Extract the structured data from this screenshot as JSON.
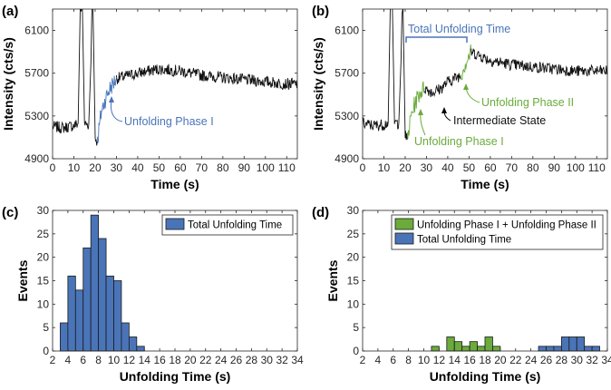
{
  "colors": {
    "blue": "#4a74b8",
    "green": "#6aab3c",
    "trace": "#111111",
    "axis": "#262626"
  },
  "chart_data": [
    {
      "panel": "(a)",
      "type": "line",
      "xlabel": "Time (s)",
      "ylabel": "Intensity (cts/s)",
      "xlim": [
        0,
        115
      ],
      "ylim": [
        4900,
        6300
      ],
      "xticks": [
        0,
        10,
        20,
        30,
        40,
        50,
        60,
        70,
        80,
        90,
        100,
        110
      ],
      "yticks": [
        4900,
        5300,
        5700,
        6100
      ],
      "grid": false,
      "segments": [
        {
          "color": "black",
          "x": [
            0,
            5,
            10,
            12,
            13,
            14,
            15,
            17,
            18,
            18.5,
            19,
            20,
            21
          ],
          "y": [
            5200,
            5190,
            5210,
            5230,
            6300,
            6300,
            5230,
            5220,
            5800,
            6300,
            6300,
            5100,
            5060
          ]
        },
        {
          "color": "blue",
          "x": [
            21,
            23,
            25,
            27,
            29,
            30
          ],
          "y": [
            5060,
            5350,
            5470,
            5560,
            5620,
            5650
          ]
        },
        {
          "color": "black",
          "x": [
            30,
            40,
            50,
            60,
            70,
            80,
            90,
            100,
            110,
            115
          ],
          "y": [
            5650,
            5700,
            5740,
            5720,
            5680,
            5660,
            5640,
            5620,
            5600,
            5600
          ]
        }
      ],
      "annotations": [
        {
          "text": "Unfolding Phase I",
          "color": "blue"
        }
      ]
    },
    {
      "panel": "(b)",
      "type": "line",
      "xlabel": "Time (s)",
      "ylabel": "Intensity (cts/s)",
      "xlim": [
        0,
        115
      ],
      "ylim": [
        4900,
        6300
      ],
      "xticks": [
        0,
        10,
        20,
        30,
        40,
        50,
        60,
        70,
        80,
        90,
        100,
        110
      ],
      "yticks": [
        4900,
        5300,
        5700,
        6100
      ],
      "grid": false,
      "segments": [
        {
          "color": "black",
          "x": [
            0,
            5,
            10,
            12,
            13,
            14,
            15,
            17,
            18,
            18.5,
            19,
            20,
            21
          ],
          "y": [
            5230,
            5210,
            5220,
            5240,
            6300,
            6300,
            5240,
            5230,
            5800,
            6300,
            6300,
            5120,
            5080
          ]
        },
        {
          "color": "green",
          "x": [
            21,
            23,
            25,
            27,
            29
          ],
          "y": [
            5080,
            5320,
            5440,
            5520,
            5560
          ]
        },
        {
          "color": "black",
          "x": [
            29,
            33,
            37,
            40,
            43,
            46
          ],
          "y": [
            5560,
            5520,
            5560,
            5620,
            5650,
            5680
          ]
        },
        {
          "color": "green",
          "x": [
            46,
            48,
            50,
            51
          ],
          "y": [
            5680,
            5780,
            5860,
            5900
          ]
        },
        {
          "color": "black",
          "x": [
            51,
            60,
            70,
            80,
            90,
            100,
            110,
            115
          ],
          "y": [
            5900,
            5820,
            5780,
            5760,
            5740,
            5720,
            5720,
            5720
          ]
        }
      ],
      "annotations": [
        {
          "text": "Total Unfolding Time",
          "color": "blue"
        },
        {
          "text": "Unfolding Phase II",
          "color": "green"
        },
        {
          "text": "Intermediate State",
          "color": "black"
        },
        {
          "text": "Unfolding Phase I",
          "color": "green"
        }
      ]
    },
    {
      "panel": "(c)",
      "type": "bar",
      "xlabel": "Unfolding Time (s)",
      "ylabel": "Events",
      "xlim": [
        2,
        34
      ],
      "ylim": [
        0,
        30
      ],
      "xticks": [
        2,
        4,
        6,
        8,
        10,
        12,
        14,
        16,
        18,
        20,
        22,
        24,
        26,
        28,
        30,
        32,
        34
      ],
      "yticks": [
        0,
        5,
        10,
        15,
        20,
        25,
        30
      ],
      "bin_width": 1,
      "legend": "top-right",
      "series": [
        {
          "name": "Total Unfolding Time",
          "color": "blue",
          "x": [
            3.5,
            4.5,
            5.5,
            6.5,
            7.5,
            8.5,
            9.5,
            10.5,
            11.5,
            12.5,
            13.5
          ],
          "values": [
            6,
            16,
            13,
            22,
            29,
            24,
            16,
            15,
            6,
            3,
            1
          ]
        }
      ]
    },
    {
      "panel": "(d)",
      "type": "bar",
      "xlabel": "Unfolding Time (s)",
      "ylabel": "Events",
      "xlim": [
        2,
        34
      ],
      "ylim": [
        0,
        30
      ],
      "xticks": [
        2,
        4,
        6,
        8,
        10,
        12,
        14,
        16,
        18,
        20,
        22,
        24,
        26,
        28,
        30,
        32,
        34
      ],
      "yticks": [
        0,
        5,
        10,
        15,
        20,
        25,
        30
      ],
      "bin_width": 1,
      "legend": "top-right",
      "series": [
        {
          "name": "Unfolding Phase I + Unfolding Phase II",
          "color": "green",
          "x": [
            11.5,
            13.5,
            14.5,
            15.5,
            16.5,
            17.5,
            18.5,
            19.5
          ],
          "values": [
            1,
            3,
            2,
            1,
            2,
            1,
            3,
            1
          ]
        },
        {
          "name": "Total Unfolding Time",
          "color": "blue",
          "x": [
            25.5,
            26.5,
            27.5,
            28.5,
            29.5,
            30.5,
            31.5,
            32.5
          ],
          "values": [
            1,
            1,
            1,
            3,
            3,
            3,
            1,
            1
          ]
        }
      ]
    }
  ]
}
